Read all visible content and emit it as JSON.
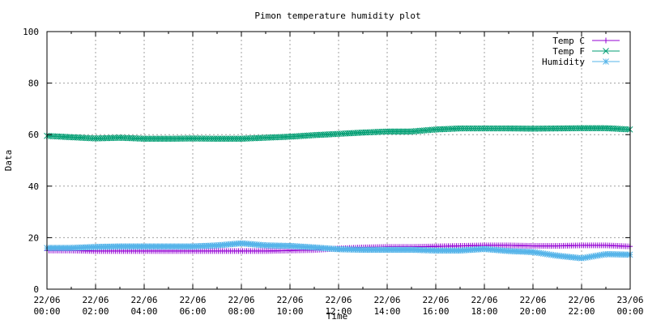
{
  "chart_data": {
    "type": "line",
    "title": "Pimon temperature   humidity plot",
    "xlabel": "Time",
    "ylabel": "Data",
    "ylim": [
      0,
      100
    ],
    "yticks": [
      0,
      20,
      40,
      60,
      80,
      100
    ],
    "xlim": [
      "22/06 00:00",
      "23/06 00:00"
    ],
    "xtick_labels": [
      {
        "date": "22/06",
        "time": "00:00"
      },
      {
        "date": "22/06",
        "time": "02:00"
      },
      {
        "date": "22/06",
        "time": "04:00"
      },
      {
        "date": "22/06",
        "time": "06:00"
      },
      {
        "date": "22/06",
        "time": "08:00"
      },
      {
        "date": "22/06",
        "time": "10:00"
      },
      {
        "date": "22/06",
        "time": "12:00"
      },
      {
        "date": "22/06",
        "time": "14:00"
      },
      {
        "date": "22/06",
        "time": "16:00"
      },
      {
        "date": "22/06",
        "time": "18:00"
      },
      {
        "date": "22/06",
        "time": "20:00"
      },
      {
        "date": "22/06",
        "time": "22:00"
      },
      {
        "date": "23/06",
        "time": "00:00"
      }
    ],
    "grid": true,
    "legend_position": "top-right",
    "x": [
      "00:00",
      "01:00",
      "02:00",
      "03:00",
      "04:00",
      "05:00",
      "06:00",
      "07:00",
      "08:00",
      "09:00",
      "10:00",
      "11:00",
      "12:00",
      "13:00",
      "14:00",
      "15:00",
      "16:00",
      "17:00",
      "18:00",
      "19:00",
      "20:00",
      "21:00",
      "22:00",
      "23:00",
      "24:00"
    ],
    "series": [
      {
        "name": "Temp C",
        "color": "#9400d3",
        "marker": "plus",
        "values": [
          15.0,
          15.0,
          14.8,
          14.8,
          14.8,
          14.8,
          14.8,
          14.8,
          14.8,
          14.8,
          15.0,
          15.2,
          15.8,
          16.2,
          16.4,
          16.4,
          16.6,
          16.8,
          17.0,
          17.0,
          16.8,
          16.8,
          17.0,
          17.0,
          16.6
        ]
      },
      {
        "name": "Temp F",
        "color": "#009e73",
        "marker": "x",
        "values": [
          59.5,
          59.0,
          58.5,
          58.8,
          58.4,
          58.4,
          58.5,
          58.4,
          58.4,
          58.8,
          59.2,
          59.8,
          60.3,
          60.8,
          61.2,
          61.2,
          62.0,
          62.4,
          62.4,
          62.4,
          62.3,
          62.4,
          62.5,
          62.5,
          62.0
        ]
      },
      {
        "name": "Humidity",
        "color": "#56b4e9",
        "marker": "star",
        "values": [
          16.0,
          16.0,
          16.4,
          16.6,
          16.6,
          16.6,
          16.6,
          17.0,
          17.8,
          17.0,
          16.8,
          16.2,
          15.5,
          15.3,
          15.3,
          15.3,
          15.0,
          15.0,
          15.6,
          14.8,
          14.4,
          13.0,
          12.0,
          13.6,
          13.4
        ]
      }
    ]
  }
}
